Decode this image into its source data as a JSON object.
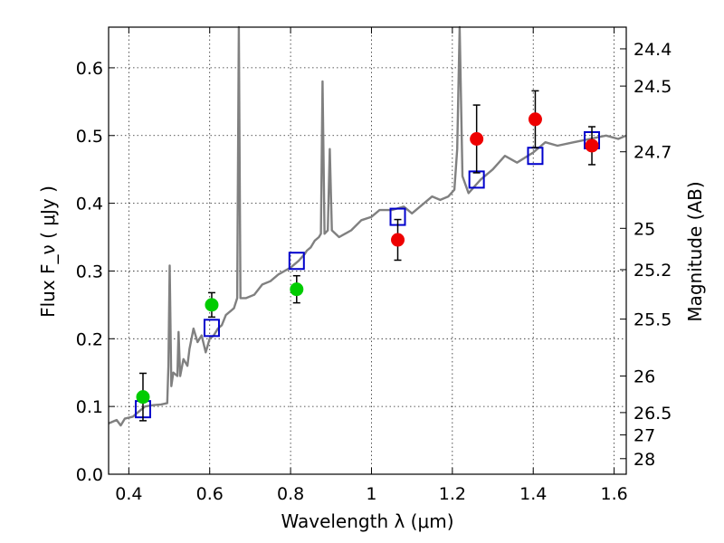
{
  "chart_data": {
    "type": "scatter",
    "title": "",
    "xlabel": "Wavelength  λ (μm)",
    "ylabel": "Flux  F_ν  ( μJy )",
    "y2label": "Magnitude (AB)",
    "xlim": [
      0.35,
      1.63
    ],
    "ylim": [
      0.0,
      0.66
    ],
    "grid": true,
    "x_ticks": [
      0.4,
      0.6,
      0.8,
      1.0,
      1.2,
      1.4,
      1.6
    ],
    "x_tick_labels": [
      "0.4",
      "0.6",
      "0.8",
      "1",
      "1.2",
      "1.4",
      "1.6"
    ],
    "y_ticks": [
      0.0,
      0.1,
      0.2,
      0.3,
      0.4,
      0.5,
      0.6
    ],
    "y_tick_labels": [
      "0.0",
      "0.1",
      "0.2",
      "0.3",
      "0.4",
      "0.5",
      "0.6"
    ],
    "magnitude_ticks": [
      {
        "label": "24.4",
        "flux": 0.628
      },
      {
        "label": "24.5",
        "flux": 0.573
      },
      {
        "label": "24.7",
        "flux": 0.476
      },
      {
        "label": "25",
        "flux": 0.363
      },
      {
        "label": "25.2",
        "flux": 0.302
      },
      {
        "label": "25.5",
        "flux": 0.229
      },
      {
        "label": "26",
        "flux": 0.145
      },
      {
        "label": "26.5",
        "flux": 0.091
      },
      {
        "label": "27",
        "flux": 0.058
      },
      {
        "label": "28",
        "flux": 0.023
      }
    ],
    "colors": {
      "model": "#808080",
      "model_points": "#0000cc",
      "optical": "#00cc00",
      "nir": "#ee0000",
      "errorbar": "#000000"
    },
    "series": [
      {
        "kind": "model_spectrum",
        "points": [
          [
            0.35,
            0.075
          ],
          [
            0.37,
            0.08
          ],
          [
            0.38,
            0.072
          ],
          [
            0.39,
            0.082
          ],
          [
            0.41,
            0.085
          ],
          [
            0.42,
            0.09
          ],
          [
            0.44,
            0.1
          ],
          [
            0.46,
            0.102
          ],
          [
            0.48,
            0.103
          ],
          [
            0.495,
            0.105
          ],
          [
            0.498,
            0.16
          ],
          [
            0.501,
            0.308
          ],
          [
            0.505,
            0.13
          ],
          [
            0.51,
            0.15
          ],
          [
            0.52,
            0.145
          ],
          [
            0.523,
            0.21
          ],
          [
            0.527,
            0.145
          ],
          [
            0.535,
            0.17
          ],
          [
            0.545,
            0.16
          ],
          [
            0.55,
            0.185
          ],
          [
            0.56,
            0.215
          ],
          [
            0.57,
            0.195
          ],
          [
            0.58,
            0.205
          ],
          [
            0.59,
            0.18
          ],
          [
            0.6,
            0.2
          ],
          [
            0.61,
            0.205
          ],
          [
            0.62,
            0.215
          ],
          [
            0.63,
            0.22
          ],
          [
            0.64,
            0.235
          ],
          [
            0.66,
            0.245
          ],
          [
            0.668,
            0.26
          ],
          [
            0.672,
            0.66
          ],
          [
            0.676,
            0.26
          ],
          [
            0.69,
            0.26
          ],
          [
            0.71,
            0.265
          ],
          [
            0.73,
            0.28
          ],
          [
            0.75,
            0.285
          ],
          [
            0.77,
            0.295
          ],
          [
            0.8,
            0.305
          ],
          [
            0.82,
            0.315
          ],
          [
            0.835,
            0.325
          ],
          [
            0.84,
            0.33
          ],
          [
            0.85,
            0.335
          ],
          [
            0.86,
            0.345
          ],
          [
            0.87,
            0.35
          ],
          [
            0.875,
            0.355
          ],
          [
            0.879,
            0.58
          ],
          [
            0.884,
            0.355
          ],
          [
            0.892,
            0.36
          ],
          [
            0.897,
            0.48
          ],
          [
            0.902,
            0.36
          ],
          [
            0.92,
            0.35
          ],
          [
            0.95,
            0.36
          ],
          [
            0.975,
            0.375
          ],
          [
            1.0,
            0.38
          ],
          [
            1.02,
            0.39
          ],
          [
            1.05,
            0.39
          ],
          [
            1.08,
            0.395
          ],
          [
            1.1,
            0.385
          ],
          [
            1.13,
            0.4
          ],
          [
            1.15,
            0.41
          ],
          [
            1.17,
            0.405
          ],
          [
            1.19,
            0.41
          ],
          [
            1.205,
            0.42
          ],
          [
            1.212,
            0.48
          ],
          [
            1.218,
            0.66
          ],
          [
            1.225,
            0.44
          ],
          [
            1.24,
            0.415
          ],
          [
            1.27,
            0.435
          ],
          [
            1.3,
            0.45
          ],
          [
            1.33,
            0.47
          ],
          [
            1.36,
            0.46
          ],
          [
            1.4,
            0.475
          ],
          [
            1.43,
            0.49
          ],
          [
            1.46,
            0.485
          ],
          [
            1.5,
            0.49
          ],
          [
            1.54,
            0.495
          ],
          [
            1.58,
            0.5
          ],
          [
            1.61,
            0.495
          ],
          [
            1.63,
            0.5
          ]
        ]
      },
      {
        "kind": "model_points",
        "marker": "open-square",
        "x": [
          0.435,
          0.605,
          0.815,
          1.065,
          1.26,
          1.405,
          1.545
        ],
        "y": [
          0.096,
          0.216,
          0.315,
          0.38,
          0.435,
          0.47,
          0.493
        ]
      },
      {
        "kind": "observed_optical",
        "marker": "filled-circle",
        "x": [
          0.435,
          0.605,
          0.815
        ],
        "y": [
          0.114,
          0.25,
          0.273
        ],
        "err": [
          0.035,
          0.018,
          0.02
        ]
      },
      {
        "kind": "observed_nir",
        "marker": "filled-circle",
        "x": [
          1.065,
          1.26,
          1.405,
          1.545
        ],
        "y": [
          0.346,
          0.495,
          0.524,
          0.485
        ],
        "err": [
          0.03,
          0.05,
          0.042,
          0.028
        ]
      }
    ]
  }
}
